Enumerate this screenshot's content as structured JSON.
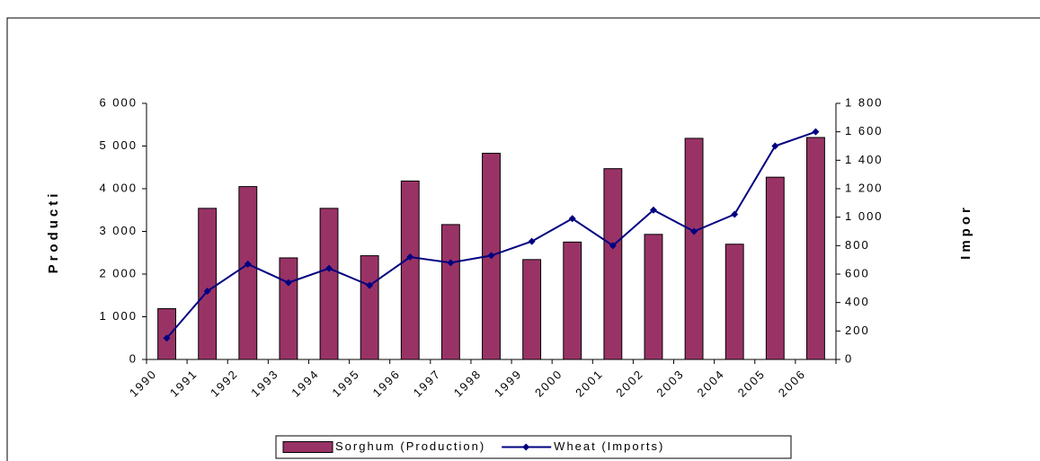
{
  "chart_data": {
    "type": "bar-line",
    "categories": [
      "1990",
      "1991",
      "1992",
      "1993",
      "1994",
      "1995",
      "1996",
      "1997",
      "1998",
      "1999",
      "2000",
      "2001",
      "2002",
      "2003",
      "2004",
      "2005",
      "2006"
    ],
    "y_label": "Producti",
    "y2_label": "Impor",
    "series": [
      {
        "name": "Sorghum (Production)",
        "type": "bar",
        "color": "#993366",
        "values": [
          1190,
          3540,
          4050,
          2380,
          3540,
          2430,
          4180,
          3160,
          4830,
          2340,
          2750,
          4470,
          2930,
          5180,
          2700,
          4270,
          5200
        ]
      },
      {
        "name": "Wheat (Imports)",
        "type": "line",
        "axis": "y2",
        "color": "#000080",
        "values": [
          150,
          480,
          670,
          540,
          640,
          520,
          720,
          680,
          730,
          830,
          990,
          800,
          1050,
          900,
          1020,
          1500,
          1600
        ]
      }
    ],
    "ylim": [
      0,
      6000
    ],
    "yticks": [
      0,
      {
        "value": 1000,
        "label": "1 000"
      },
      {
        "value": 2000,
        "label": "2 000"
      },
      {
        "value": 3000,
        "label": "3 000"
      },
      {
        "value": 4000,
        "label": "4 000"
      },
      {
        "value": 5000,
        "label": "5 000"
      },
      {
        "value": 6000,
        "label": "6 000"
      }
    ],
    "y2lim": [
      0,
      1800
    ],
    "y2ticks": [
      0,
      200,
      400,
      600,
      800,
      {
        "value": 1000,
        "label": "1 000"
      },
      {
        "value": 1200,
        "label": "1 200"
      },
      {
        "value": 1400,
        "label": "1 400"
      },
      {
        "value": 1600,
        "label": "1 600"
      },
      {
        "value": 1800,
        "label": "1 800"
      }
    ],
    "legend": "bottom"
  }
}
